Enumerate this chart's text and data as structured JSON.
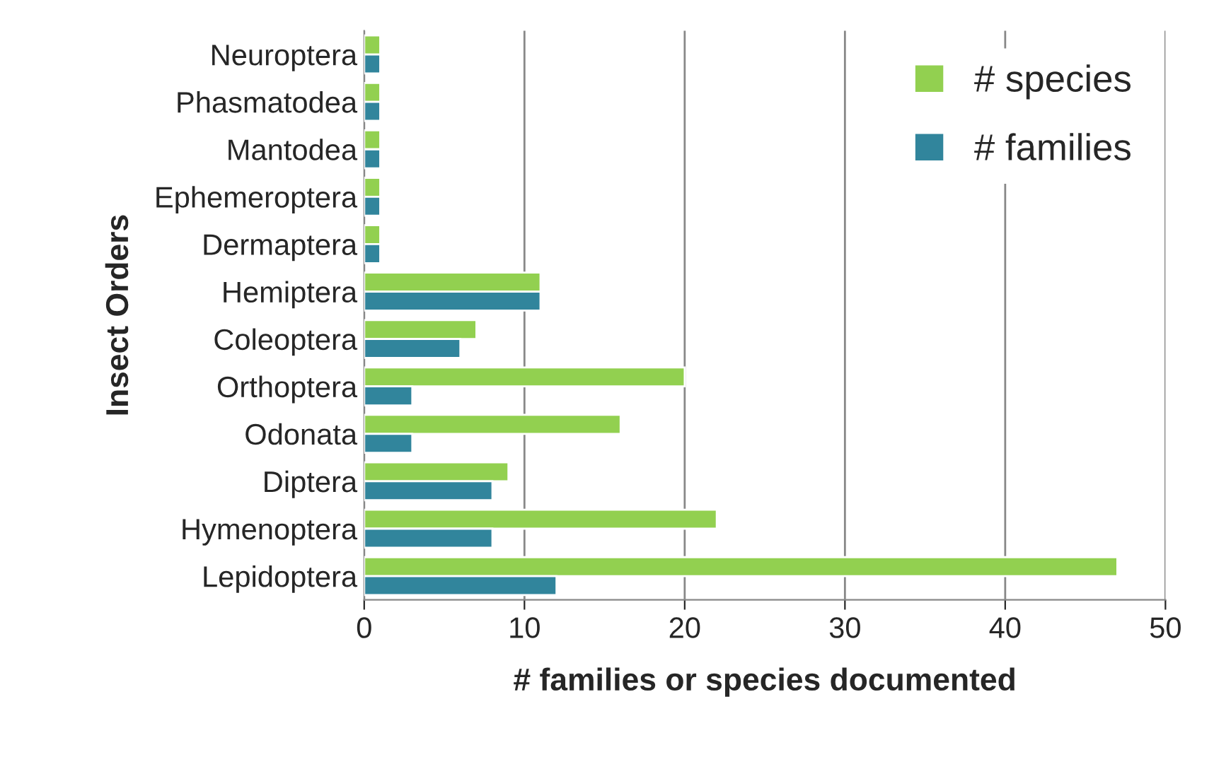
{
  "chart_data": {
    "type": "bar",
    "orientation": "horizontal",
    "xlabel": "# families or species documented",
    "ylabel": "Insect Orders",
    "categories": [
      "Neuroptera",
      "Phasmatodea",
      "Mantodea",
      "Ephemeroptera",
      "Dermaptera",
      "Hemiptera",
      "Coleoptera",
      "Orthoptera",
      "Odonata",
      "Diptera",
      "Hymenoptera",
      "Lepidoptera"
    ],
    "series": [
      {
        "name": "# species",
        "color": "#92d050",
        "values": [
          1,
          1,
          1,
          1,
          1,
          11,
          7,
          20,
          16,
          9,
          22,
          47
        ]
      },
      {
        "name": "# families",
        "color": "#31859c",
        "values": [
          1,
          1,
          1,
          1,
          1,
          11,
          6,
          3,
          3,
          8,
          8,
          12
        ]
      }
    ],
    "xlim": [
      0,
      50
    ],
    "xticks": [
      0,
      10,
      20,
      30,
      40,
      50
    ],
    "grid": "x",
    "legend": "top right"
  }
}
